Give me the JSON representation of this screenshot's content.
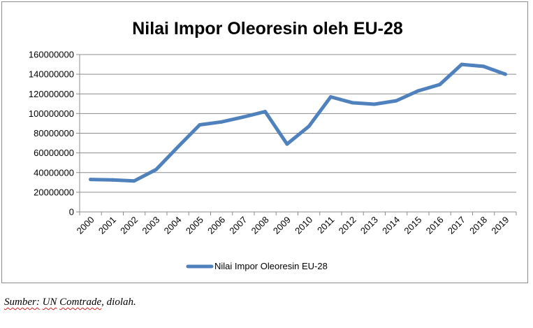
{
  "chart_data": {
    "type": "line",
    "title": "Nilai Impor Oleoresin oleh EU-28",
    "categories": [
      "2000",
      "2001",
      "2002",
      "2003",
      "2004",
      "2005",
      "2006",
      "2007",
      "2008",
      "2009",
      "2010",
      "2011",
      "2012",
      "2013",
      "2014",
      "2015",
      "2016",
      "2017",
      "2018",
      "2019"
    ],
    "series": [
      {
        "name": "Nilai Impor Oleoresin EU-28",
        "color": "#4f81bd",
        "values": [
          33000000,
          32500000,
          31500000,
          43000000,
          66000000,
          88500000,
          91500000,
          96500000,
          102000000,
          69000000,
          87000000,
          117000000,
          111000000,
          109500000,
          113000000,
          123000000,
          129500000,
          150000000,
          148000000,
          140000000
        ]
      }
    ],
    "ylim": [
      0,
      160000000
    ],
    "yticks": [
      0,
      20000000,
      40000000,
      60000000,
      80000000,
      100000000,
      120000000,
      140000000,
      160000000
    ],
    "ytick_labels": [
      "0",
      "20000000",
      "40000000",
      "60000000",
      "80000000",
      "100000000",
      "120000000",
      "140000000",
      "160000000"
    ],
    "grid": true,
    "legend_position": "bottom"
  },
  "source": {
    "label": "Sumber:",
    "un": "UN",
    "comtrade": "Comtrade",
    "rest": ", diolah."
  }
}
